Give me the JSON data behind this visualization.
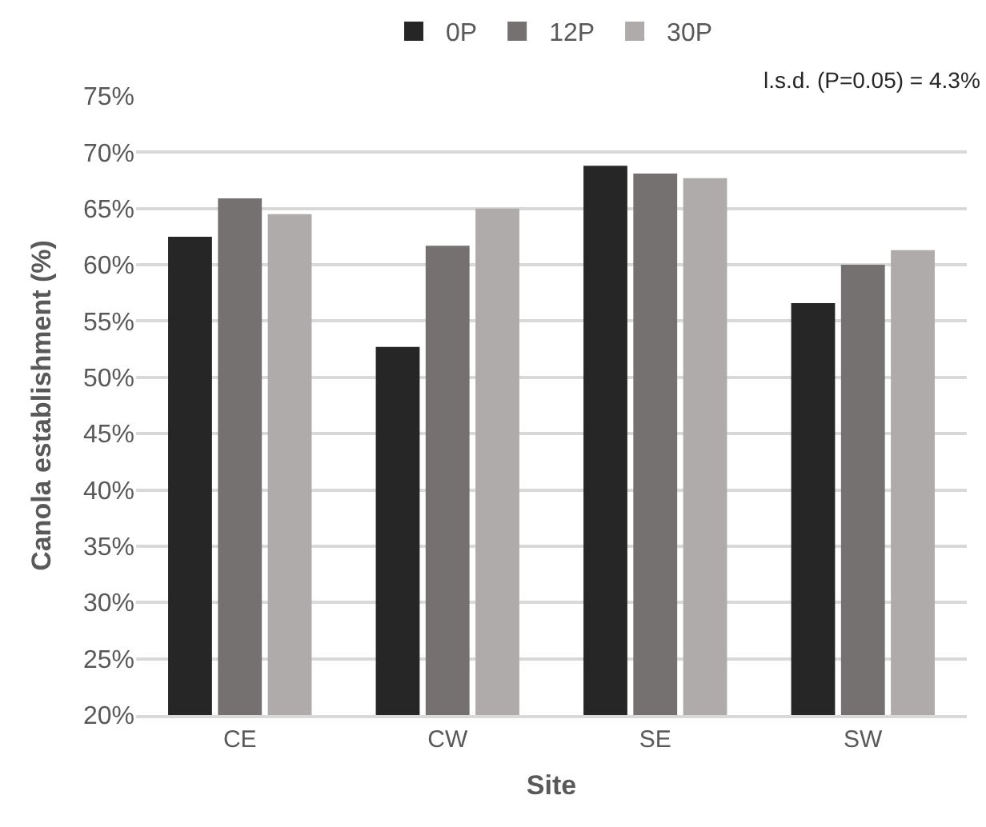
{
  "chart_data": {
    "type": "bar",
    "xlabel": "Site",
    "ylabel": "Canola establishment (%)",
    "annotations": [
      "l.s.d. (P=0.05) = 4.3%"
    ],
    "categories": [
      "CE",
      "CW",
      "SE",
      "SW"
    ],
    "series": [
      {
        "name": "0P",
        "color": "#262626",
        "values": [
          62.5,
          52.7,
          68.8,
          56.6
        ]
      },
      {
        "name": "12P",
        "color": "#767171",
        "values": [
          65.9,
          61.7,
          68.1,
          60.0
        ]
      },
      {
        "name": "30P",
        "color": "#afabab",
        "values": [
          64.5,
          65.0,
          67.7,
          61.3
        ]
      }
    ],
    "ylim": [
      20,
      75
    ],
    "yticks": [
      {
        "value": 20,
        "label": "20%"
      },
      {
        "value": 25,
        "label": "25%"
      },
      {
        "value": 30,
        "label": "30%"
      },
      {
        "value": 35,
        "label": "35%"
      },
      {
        "value": 40,
        "label": "40%"
      },
      {
        "value": 45,
        "label": "45%"
      },
      {
        "value": 50,
        "label": "50%"
      },
      {
        "value": 55,
        "label": "55%"
      },
      {
        "value": 60,
        "label": "60%"
      },
      {
        "value": 65,
        "label": "65%"
      },
      {
        "value": 70,
        "label": "70%"
      },
      {
        "value": 75,
        "label": "75%"
      }
    ],
    "grid": "y",
    "legend": "top"
  }
}
